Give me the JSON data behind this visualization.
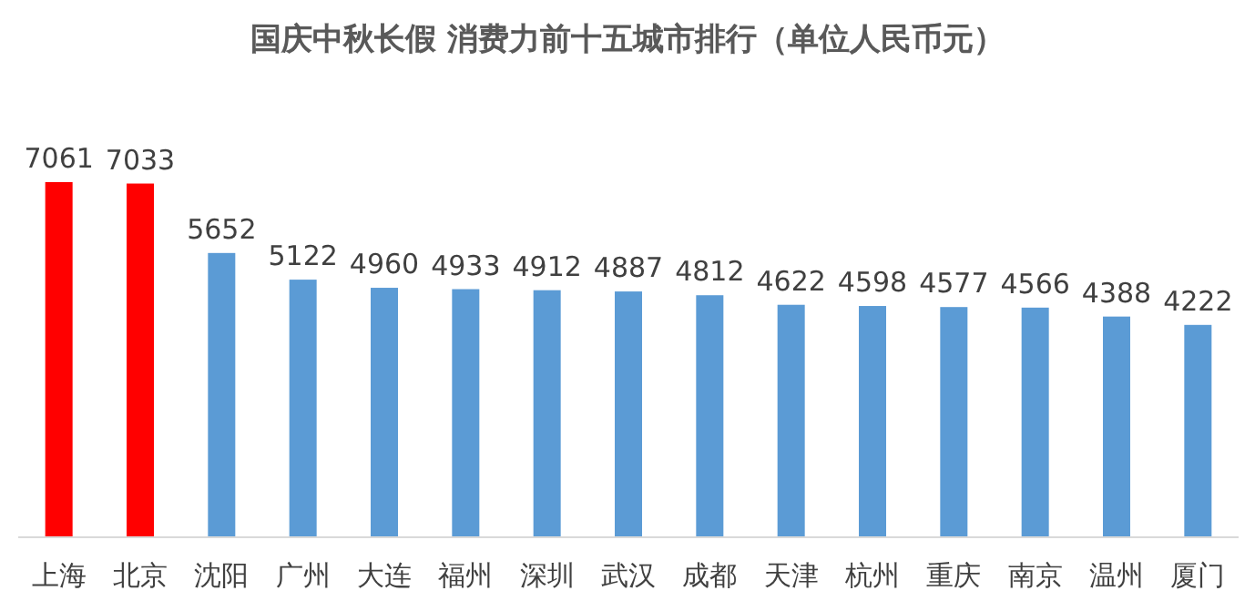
{
  "chart_data": {
    "type": "bar",
    "title": "国庆中秋长假 消费力前十五城市排行（单位人民币元）",
    "categories": [
      "上海",
      "北京",
      "沈阳",
      "广州",
      "大连",
      "福州",
      "深圳",
      "武汉",
      "成都",
      "天津",
      "杭州",
      "重庆",
      "南京",
      "温州",
      "厦门"
    ],
    "values": [
      7061,
      7033,
      5652,
      5122,
      4960,
      4933,
      4912,
      4887,
      4812,
      4622,
      4598,
      4577,
      4566,
      4388,
      4222
    ],
    "colors": [
      "#ff0000",
      "#ff0000",
      "#5b9bd5",
      "#5b9bd5",
      "#5b9bd5",
      "#5b9bd5",
      "#5b9bd5",
      "#5b9bd5",
      "#5b9bd5",
      "#5b9bd5",
      "#5b9bd5",
      "#5b9bd5",
      "#5b9bd5",
      "#5b9bd5",
      "#5b9bd5"
    ],
    "data_labels": true
  }
}
